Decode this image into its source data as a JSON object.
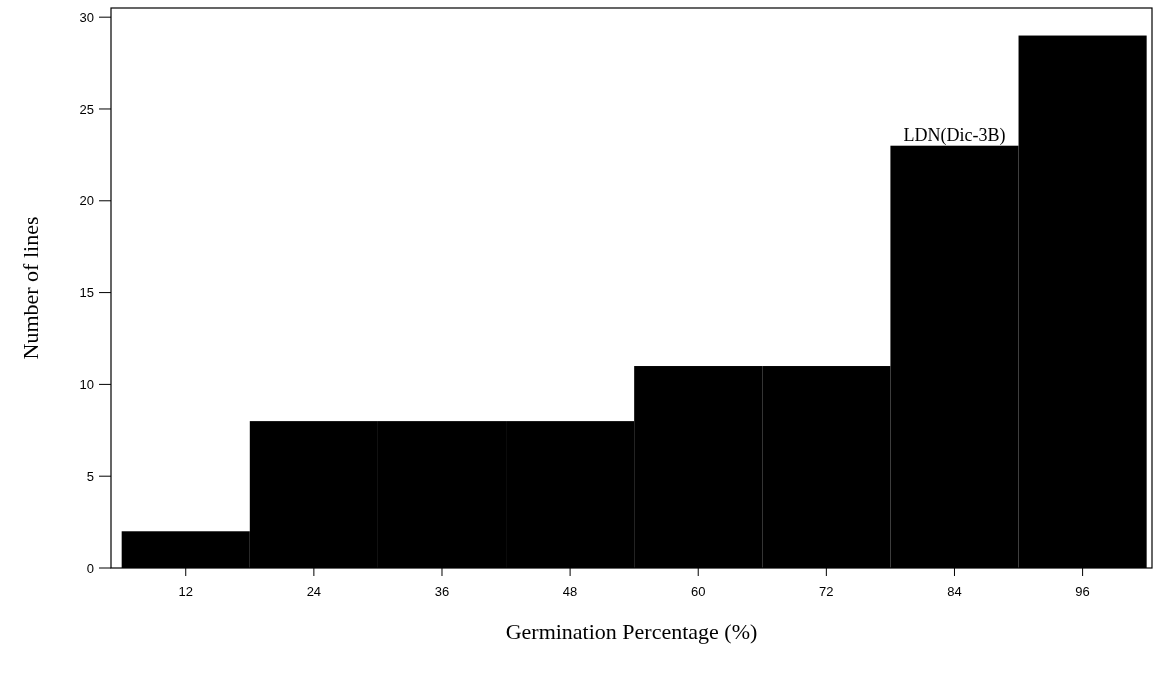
{
  "chart_data": {
    "type": "histogram",
    "xlabel": "Germination Percentage (%)",
    "ylabel": "Number of lines",
    "bins": [
      6,
      18,
      30,
      42,
      54,
      66,
      78,
      90,
      102
    ],
    "values": [
      2,
      8,
      8,
      8,
      11,
      11,
      23,
      29
    ],
    "color": "#000000",
    "xlim": [
      5,
      102.5
    ],
    "xticks": [
      12,
      24,
      36,
      48,
      60,
      72,
      84,
      96
    ],
    "ylim": [
      0,
      30.5
    ],
    "yticks": [
      0,
      5,
      10,
      15,
      20,
      25,
      30
    ],
    "grid": false,
    "annotations": [
      {
        "text": "LDN(Dic-3B)",
        "x": 84,
        "y": 23
      }
    ]
  }
}
